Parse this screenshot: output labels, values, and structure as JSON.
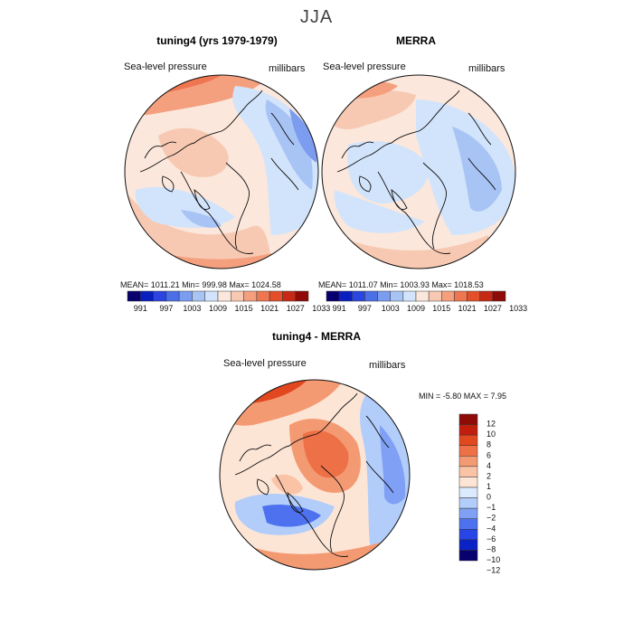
{
  "figure": {
    "title": "JJA",
    "colors": {
      "full": [
        "#08006e",
        "#0a1fbf",
        "#2b45e0",
        "#4a6fe6",
        "#7b9cef",
        "#a8c4f5",
        "#d2e4fb",
        "#fbe7dc",
        "#f8c9b2",
        "#f4a07f",
        "#ee7650",
        "#e34f2a",
        "#c62a14",
        "#8e0b07"
      ],
      "diff": [
        "#08006e",
        "#0b22c6",
        "#2845e6",
        "#4e72ef",
        "#7fa0f4",
        "#b2cdfa",
        "#dceafd",
        "#fde5d6",
        "#fac3a6",
        "#f49a73",
        "#ee7047",
        "#e2481f",
        "#c21e0d",
        "#8e0b07"
      ]
    }
  },
  "panels": {
    "left": {
      "title": "tuning4 (yrs 1979-1979)",
      "var_label": "Sea-level pressure",
      "units_label": "millibars",
      "stats": "MEAN=  1011.21    Min=  999.98    Max=  1024.58"
    },
    "right": {
      "title": "MERRA",
      "var_label": "Sea-level pressure",
      "units_label": "millibars",
      "stats": "MEAN=  1011.07    Min=  1003.93    Max=  1018.53"
    },
    "diff": {
      "title": "tuning4 - MERRA",
      "var_label": "Sea-level pressure",
      "units_label": "millibars",
      "stats": "MIN =   -5.80  MAX =    7.95"
    }
  },
  "chart_data": [
    {
      "type": "heatmap",
      "title": "tuning4 (yrs 1979-1979)",
      "variable": "Sea-level pressure",
      "units": "millibars",
      "projection": "north polar stereographic",
      "mean": 1011.21,
      "min": 999.98,
      "max": 1024.58,
      "colorbar_levels": [
        991,
        997,
        1003,
        1009,
        1015,
        1021,
        1027,
        1033
      ]
    },
    {
      "type": "heatmap",
      "title": "MERRA",
      "variable": "Sea-level pressure",
      "units": "millibars",
      "projection": "north polar stereographic",
      "mean": 1011.07,
      "min": 1003.93,
      "max": 1018.53,
      "colorbar_levels": [
        991,
        997,
        1003,
        1009,
        1015,
        1021,
        1027,
        1033
      ]
    },
    {
      "type": "heatmap",
      "title": "tuning4 - MERRA",
      "variable": "Sea-level pressure",
      "units": "millibars",
      "projection": "north polar stereographic",
      "min": -5.8,
      "max": 7.95,
      "colorbar_levels": [
        12,
        10,
        8,
        6,
        4,
        2,
        1,
        0,
        -1,
        -2,
        -4,
        -6,
        -8,
        -10,
        -12
      ]
    }
  ]
}
